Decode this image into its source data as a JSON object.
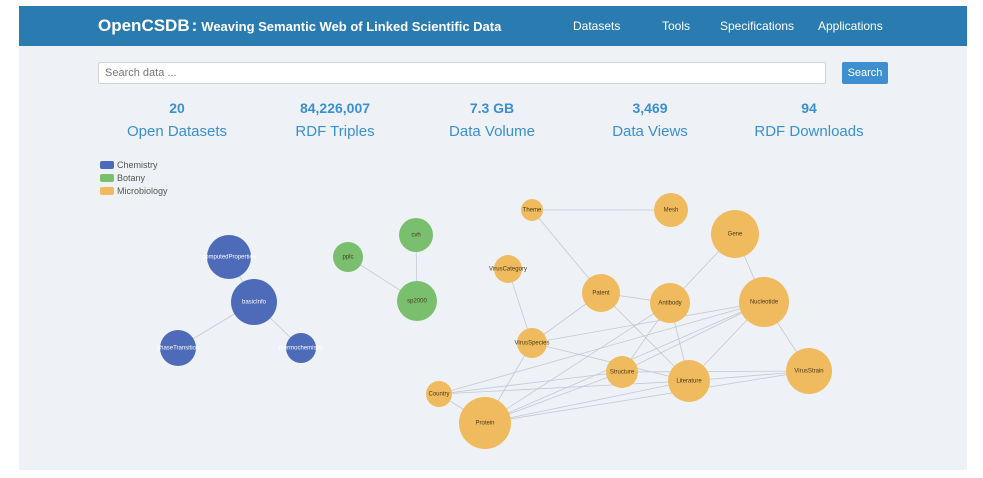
{
  "header": {
    "brand": "OpenCSDB",
    "colon": ":",
    "tagline": "Weaving Semantic Web of Linked Scientific Data"
  },
  "nav": {
    "items": [
      {
        "label": "Datasets"
      },
      {
        "label": "Tools"
      },
      {
        "label": "Specifications"
      },
      {
        "label": "Applications"
      }
    ]
  },
  "search": {
    "placeholder": "Search data ...",
    "value": "",
    "button_label": "Search"
  },
  "stats": [
    {
      "value": "20",
      "label": "Open Datasets"
    },
    {
      "value": "84,226,007",
      "label": "RDF Triples"
    },
    {
      "value": "7.3 GB",
      "label": "Data Volume"
    },
    {
      "value": "3,469",
      "label": "Data Views"
    },
    {
      "value": "94",
      "label": "RDF Downloads"
    }
  ],
  "legend": [
    {
      "label": "Chemistry",
      "color": "#4d6bb8"
    },
    {
      "label": "Botany",
      "color": "#79bf6e"
    },
    {
      "label": "Microbiology",
      "color": "#f0ba5e"
    }
  ],
  "graph": {
    "nodes": [
      {
        "id": "computedProperties",
        "label": "computedProperties",
        "group": "Chemistry"
      },
      {
        "id": "basicInfo",
        "label": "basicInfo",
        "group": "Chemistry"
      },
      {
        "id": "phaseTransition",
        "label": "phaseTransition",
        "group": "Chemistry"
      },
      {
        "id": "thermochemistry",
        "label": "thermochemistry",
        "group": "Chemistry"
      },
      {
        "id": "pplc",
        "label": "pplc",
        "group": "Botany"
      },
      {
        "id": "cvh",
        "label": "cvh",
        "group": "Botany"
      },
      {
        "id": "sp2000",
        "label": "sp2000",
        "group": "Botany"
      },
      {
        "id": "Theme",
        "label": "Theme",
        "group": "Microbiology"
      },
      {
        "id": "Mesh",
        "label": "Mesh",
        "group": "Microbiology"
      },
      {
        "id": "Gene",
        "label": "Gene",
        "group": "Microbiology"
      },
      {
        "id": "VirusCategory",
        "label": "VirusCategory",
        "group": "Microbiology"
      },
      {
        "id": "Patent",
        "label": "Patent",
        "group": "Microbiology"
      },
      {
        "id": "Antibody",
        "label": "Antibody",
        "group": "Microbiology"
      },
      {
        "id": "Nucleotide",
        "label": "Nucleotide",
        "group": "Microbiology"
      },
      {
        "id": "VirusSpecies",
        "label": "VirusSpecies",
        "group": "Microbiology"
      },
      {
        "id": "Structure",
        "label": "Structure",
        "group": "Microbiology"
      },
      {
        "id": "Literature",
        "label": "Literature",
        "group": "Microbiology"
      },
      {
        "id": "VirusStrain",
        "label": "VirusStrain",
        "group": "Microbiology"
      },
      {
        "id": "Country",
        "label": "Country",
        "group": "Microbiology"
      },
      {
        "id": "Protein",
        "label": "Protein",
        "group": "Microbiology"
      }
    ],
    "links": [
      [
        "computedProperties",
        "basicInfo"
      ],
      [
        "basicInfo",
        "phaseTransition"
      ],
      [
        "basicInfo",
        "thermochemistry"
      ],
      [
        "pplc",
        "sp2000"
      ],
      [
        "cvh",
        "sp2000"
      ],
      [
        "Theme",
        "Mesh"
      ],
      [
        "Theme",
        "Patent"
      ],
      [
        "Gene",
        "Antibody"
      ],
      [
        "Gene",
        "Nucleotide"
      ],
      [
        "VirusCategory",
        "VirusSpecies"
      ],
      [
        "Patent",
        "Antibody"
      ],
      [
        "Patent",
        "Literature"
      ],
      [
        "Patent",
        "VirusSpecies"
      ],
      [
        "Antibody",
        "Literature"
      ],
      [
        "Antibody",
        "Structure"
      ],
      [
        "Nucleotide",
        "VirusSpecies"
      ],
      [
        "Nucleotide",
        "Structure"
      ],
      [
        "Nucleotide",
        "Literature"
      ],
      [
        "Nucleotide",
        "VirusStrain"
      ],
      [
        "Nucleotide",
        "Protein"
      ],
      [
        "Nucleotide",
        "Country"
      ],
      [
        "Antibody",
        "Protein"
      ],
      [
        "VirusSpecies",
        "Protein"
      ],
      [
        "VirusSpecies",
        "Literature"
      ],
      [
        "Structure",
        "Protein"
      ],
      [
        "Structure",
        "VirusStrain"
      ],
      [
        "Literature",
        "Protein"
      ],
      [
        "Literature",
        "VirusStrain"
      ],
      [
        "Literature",
        "Country"
      ],
      [
        "Country",
        "Protein"
      ],
      [
        "Country",
        "Structure"
      ],
      [
        "VirusStrain",
        "Protein"
      ]
    ]
  }
}
